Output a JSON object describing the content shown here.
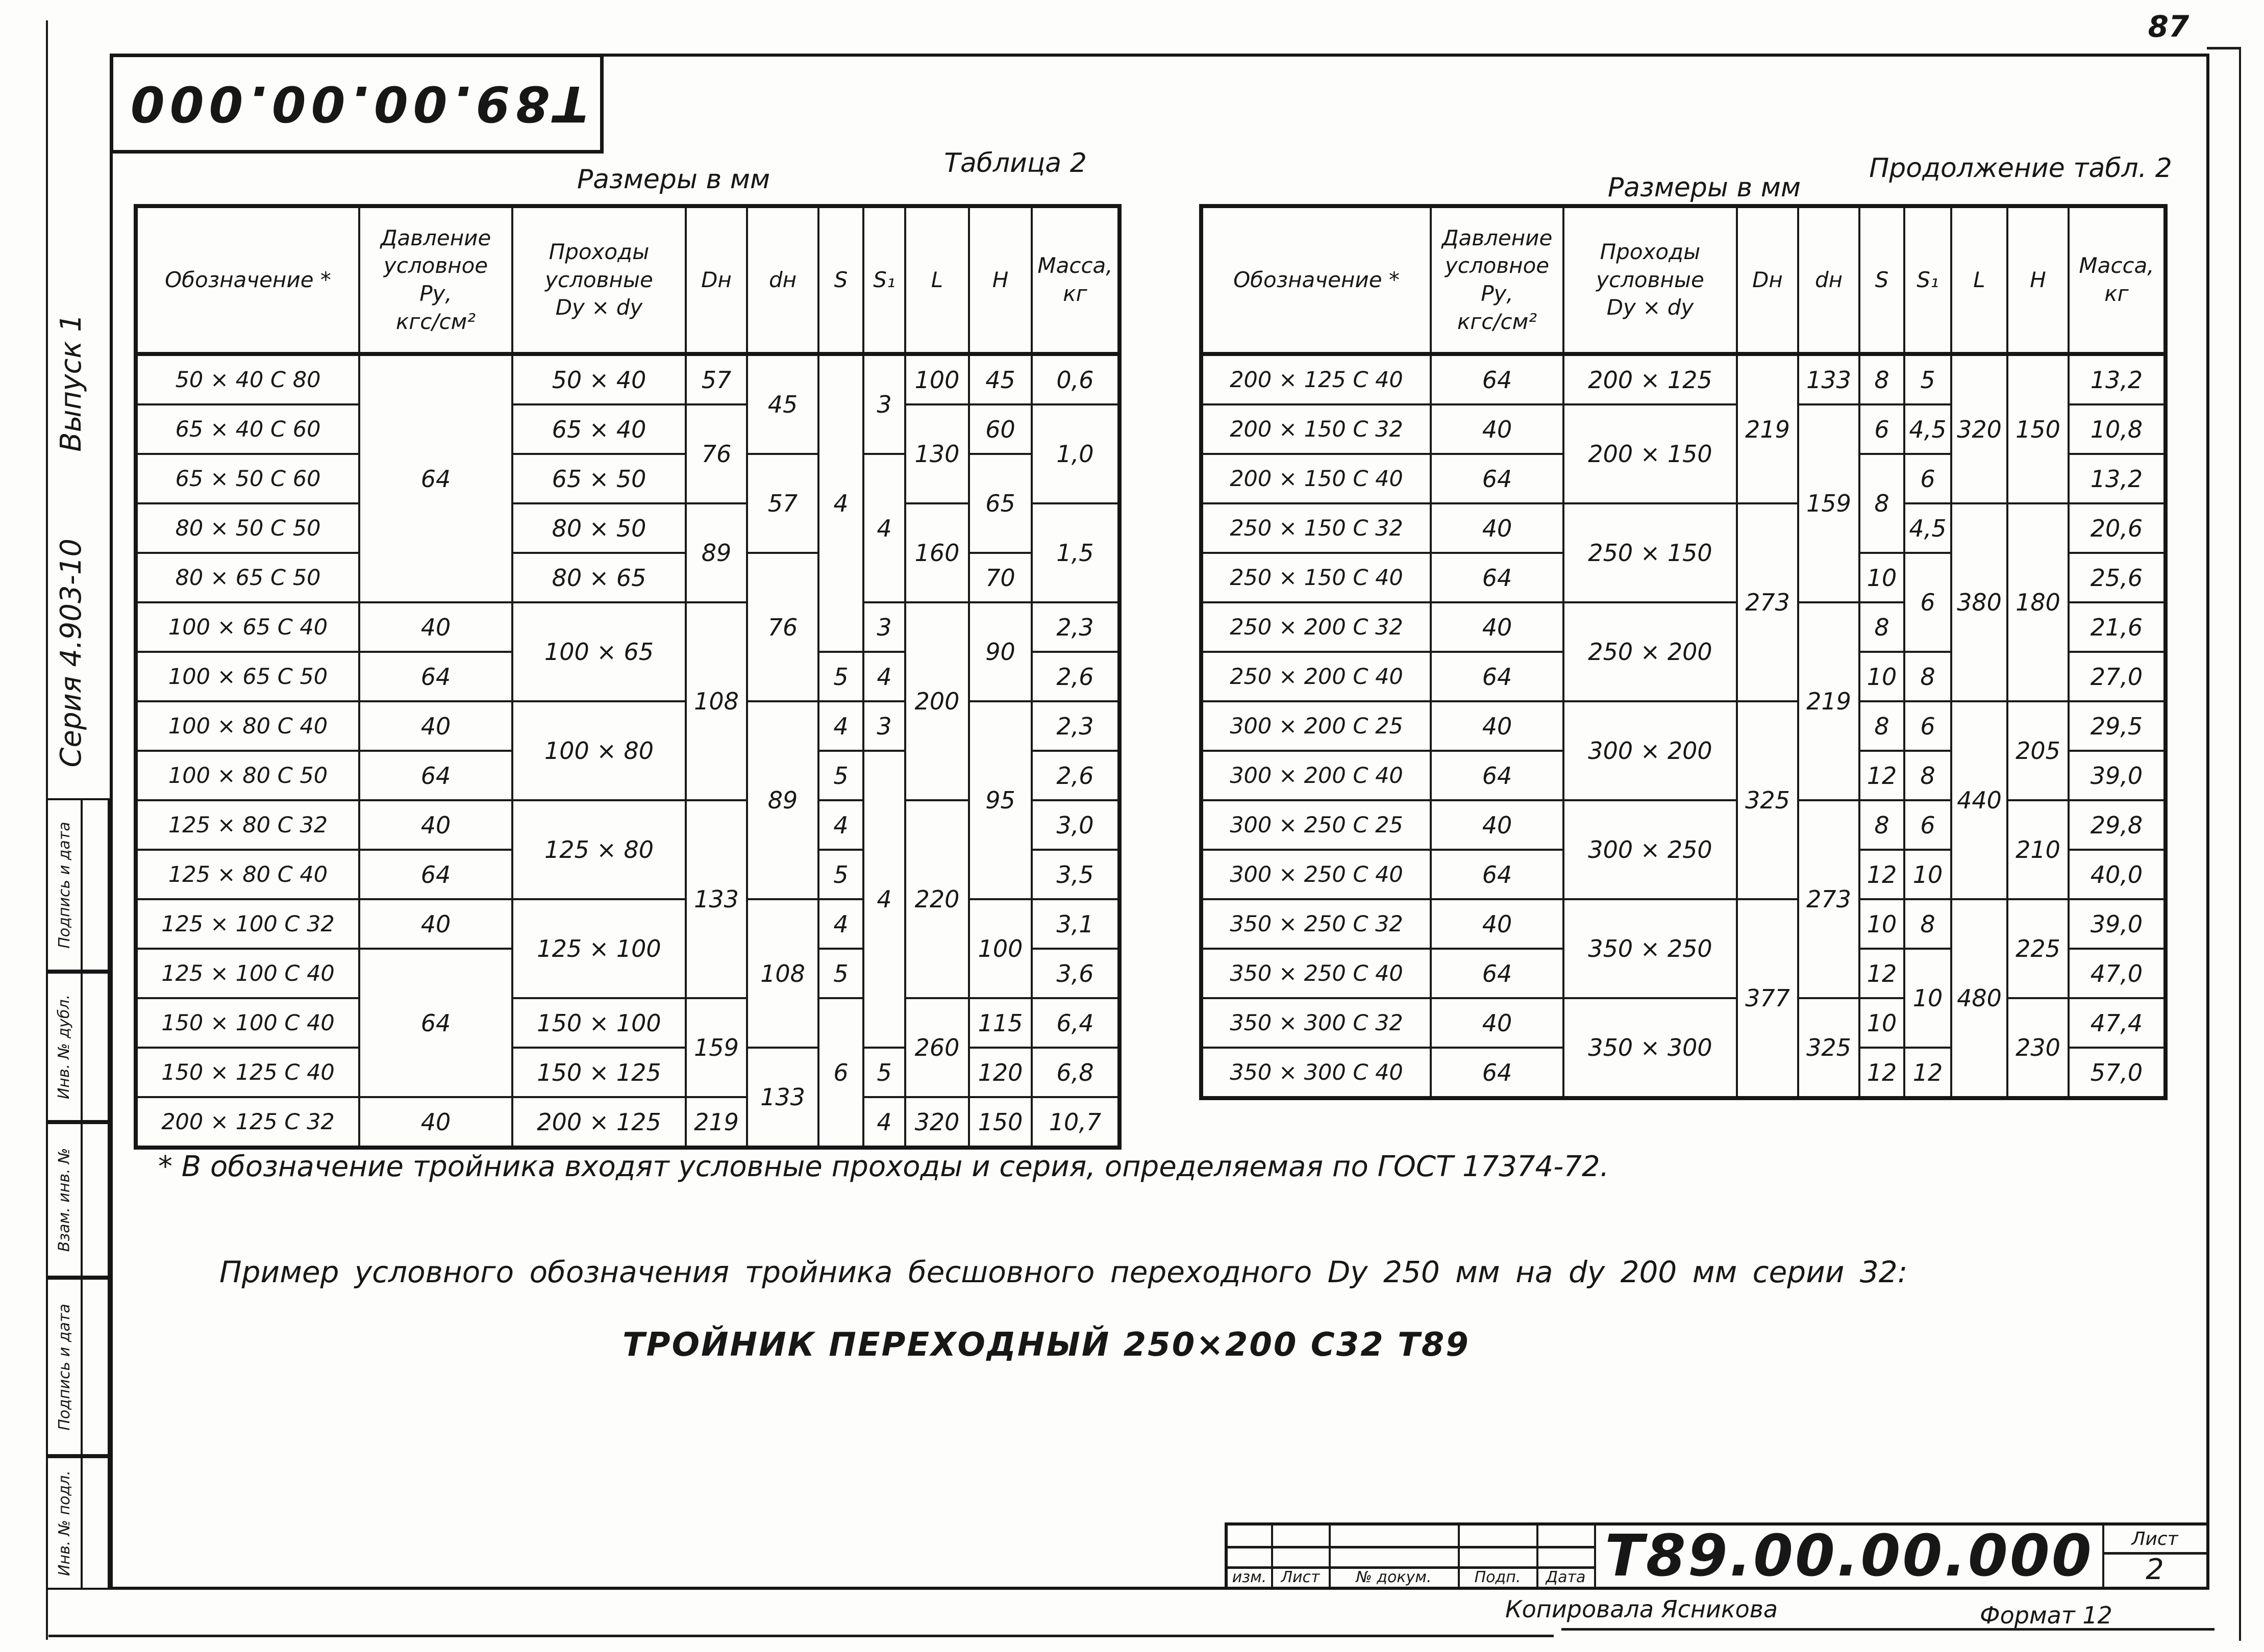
{
  "page": {
    "page_number": "87",
    "corner_stamp": "Т89.00.00.000"
  },
  "sidebar": {
    "series": "Серия 4.903-10",
    "issue": "Выпуск 1",
    "stamps": [
      {
        "label": "Подпись и дата"
      },
      {
        "label": "Инв. № дубл."
      },
      {
        "label": "Взам. инв. №"
      },
      {
        "label": "Подпись и дата"
      },
      {
        "label": "Инв. № подл."
      }
    ]
  },
  "left_table": {
    "size_caption": "Размеры в мм",
    "table_caption": "Таблица 2",
    "headers": [
      "Обозначение *",
      "Давление\nусловное\nРу,\nкгс/см²",
      "Проходы\nусловные\nDу × dу",
      "Dн",
      "dн",
      "S",
      "S₁",
      "L",
      "H",
      "Масса,\nкг"
    ],
    "rows": [
      [
        {
          "t": "50 × 40 С 80"
        },
        {
          "t": "64",
          "rs": 5
        },
        {
          "t": "50 × 40"
        },
        {
          "t": "57"
        },
        {
          "t": "45",
          "rs": 2
        },
        {
          "t": "4",
          "rs": 6
        },
        {
          "t": "3",
          "rs": 2
        },
        {
          "t": "100"
        },
        {
          "t": "45"
        },
        {
          "t": "0,6"
        }
      ],
      [
        {
          "t": "65 × 40 С 60"
        },
        null,
        {
          "t": "65 × 40"
        },
        {
          "t": "76",
          "rs": 2
        },
        null,
        null,
        null,
        {
          "t": "130",
          "rs": 2
        },
        {
          "t": "60"
        },
        {
          "t": "1,0",
          "rs": 2
        }
      ],
      [
        {
          "t": "65 × 50 С 60"
        },
        null,
        {
          "t": "65 × 50"
        },
        null,
        {
          "t": "57",
          "rs": 2
        },
        null,
        {
          "t": "4",
          "rs": 3
        },
        null,
        {
          "t": "65",
          "rs": 2
        },
        null
      ],
      [
        {
          "t": "80 × 50 С 50"
        },
        null,
        {
          "t": "80 × 50"
        },
        {
          "t": "89",
          "rs": 2
        },
        null,
        null,
        null,
        {
          "t": "160",
          "rs": 2
        },
        null,
        {
          "t": "1,5",
          "rs": 2
        }
      ],
      [
        {
          "t": "80 × 65 С 50"
        },
        null,
        {
          "t": "80 × 65"
        },
        null,
        {
          "t": "76",
          "rs": 3
        },
        null,
        null,
        null,
        {
          "t": "70"
        },
        null
      ],
      [
        {
          "t": "100 × 65 С 40"
        },
        {
          "t": "40"
        },
        {
          "t": "100 × 65",
          "rs": 2
        },
        {
          "t": "108",
          "rs": 4
        },
        null,
        null,
        {
          "t": "3"
        },
        {
          "t": "200",
          "rs": 4
        },
        {
          "t": "90",
          "rs": 2
        },
        {
          "t": "2,3"
        }
      ],
      [
        {
          "t": "100 × 65 С 50"
        },
        {
          "t": "64"
        },
        null,
        null,
        null,
        {
          "t": "5"
        },
        {
          "t": "4"
        },
        null,
        null,
        {
          "t": "2,6"
        }
      ],
      [
        {
          "t": "100 × 80 С 40"
        },
        {
          "t": "40"
        },
        {
          "t": "100 × 80",
          "rs": 2
        },
        null,
        {
          "t": "89",
          "rs": 4
        },
        {
          "t": "4"
        },
        {
          "t": "3"
        },
        null,
        {
          "t": "95",
          "rs": 4
        },
        {
          "t": "2,3"
        }
      ],
      [
        {
          "t": "100 × 80 С 50"
        },
        {
          "t": "64"
        },
        null,
        null,
        null,
        {
          "t": "5"
        },
        {
          "t": "4",
          "rs": 6
        },
        null,
        null,
        {
          "t": "2,6"
        }
      ],
      [
        {
          "t": "125 × 80 С 32"
        },
        {
          "t": "40"
        },
        {
          "t": "125 × 80",
          "rs": 2
        },
        {
          "t": "133",
          "rs": 4
        },
        null,
        {
          "t": "4"
        },
        null,
        {
          "t": "220",
          "rs": 4
        },
        null,
        {
          "t": "3,0"
        }
      ],
      [
        {
          "t": "125 × 80 С 40"
        },
        {
          "t": "64"
        },
        null,
        null,
        null,
        {
          "t": "5"
        },
        null,
        null,
        null,
        {
          "t": "3,5"
        }
      ],
      [
        {
          "t": "125 × 100 С 32"
        },
        {
          "t": "40"
        },
        {
          "t": "125 × 100",
          "rs": 2
        },
        null,
        {
          "t": "108",
          "rs": 3
        },
        {
          "t": "4"
        },
        null,
        null,
        {
          "t": "100",
          "rs": 2
        },
        {
          "t": "3,1"
        }
      ],
      [
        {
          "t": "125 × 100 С 40"
        },
        {
          "t": "64",
          "rs": 3
        },
        null,
        null,
        null,
        {
          "t": "5"
        },
        null,
        null,
        null,
        {
          "t": "3,6"
        }
      ],
      [
        {
          "t": "150 × 100 С 40"
        },
        null,
        {
          "t": "150 × 100"
        },
        {
          "t": "159",
          "rs": 2
        },
        null,
        {
          "t": "6",
          "rs": 3
        },
        null,
        {
          "t": "260",
          "rs": 2
        },
        {
          "t": "115"
        },
        {
          "t": "6,4"
        }
      ],
      [
        {
          "t": "150 × 125 С 40"
        },
        null,
        {
          "t": "150 × 125"
        },
        null,
        {
          "t": "133",
          "rs": 2
        },
        null,
        {
          "t": "5"
        },
        null,
        {
          "t": "120"
        },
        {
          "t": "6,8"
        }
      ],
      [
        {
          "t": "200 × 125 С 32"
        },
        {
          "t": "40"
        },
        {
          "t": "200 × 125"
        },
        {
          "t": "219"
        },
        null,
        null,
        {
          "t": "4"
        },
        {
          "t": "320"
        },
        {
          "t": "150"
        },
        {
          "t": "10,7"
        }
      ]
    ]
  },
  "right_table": {
    "size_caption": "Размеры в мм",
    "table_caption": "Продолжение табл. 2",
    "headers": [
      "Обозначение *",
      "Давление\nусловное\nРу,\nкгс/см²",
      "Проходы\nусловные\nDу × dу",
      "Dн",
      "dн",
      "S",
      "S₁",
      "L",
      "H",
      "Масса,\nкг"
    ],
    "rows": [
      [
        {
          "t": "200 × 125 С 40"
        },
        {
          "t": "64"
        },
        {
          "t": "200 × 125"
        },
        {
          "t": "219",
          "rs": 3
        },
        {
          "t": "133"
        },
        {
          "t": "8"
        },
        {
          "t": "5"
        },
        {
          "t": "320",
          "rs": 3
        },
        {
          "t": "150",
          "rs": 3
        },
        {
          "t": "13,2"
        }
      ],
      [
        {
          "t": "200 × 150 С 32"
        },
        {
          "t": "40"
        },
        {
          "t": "200 × 150",
          "rs": 2
        },
        null,
        {
          "t": "159",
          "rs": 4
        },
        {
          "t": "6"
        },
        {
          "t": "4,5"
        },
        null,
        null,
        {
          "t": "10,8"
        }
      ],
      [
        {
          "t": "200 × 150 С 40"
        },
        {
          "t": "64"
        },
        null,
        null,
        null,
        {
          "t": "8",
          "rs": 2
        },
        {
          "t": "6"
        },
        null,
        null,
        {
          "t": "13,2"
        }
      ],
      [
        {
          "t": "250 × 150 С 32"
        },
        {
          "t": "40"
        },
        {
          "t": "250 × 150",
          "rs": 2
        },
        {
          "t": "273",
          "rs": 4
        },
        null,
        null,
        {
          "t": "4,5"
        },
        {
          "t": "380",
          "rs": 4
        },
        {
          "t": "180",
          "rs": 4
        },
        {
          "t": "20,6"
        }
      ],
      [
        {
          "t": "250 × 150 С 40"
        },
        {
          "t": "64"
        },
        null,
        null,
        null,
        {
          "t": "10"
        },
        {
          "t": "6",
          "rs": 2
        },
        null,
        null,
        {
          "t": "25,6"
        }
      ],
      [
        {
          "t": "250 × 200 С 32"
        },
        {
          "t": "40"
        },
        {
          "t": "250 × 200",
          "rs": 2
        },
        null,
        {
          "t": "219",
          "rs": 4
        },
        {
          "t": "8"
        },
        null,
        null,
        null,
        {
          "t": "21,6"
        }
      ],
      [
        {
          "t": "250 × 200 С 40"
        },
        {
          "t": "64"
        },
        null,
        null,
        null,
        {
          "t": "10"
        },
        {
          "t": "8"
        },
        null,
        null,
        {
          "t": "27,0"
        }
      ],
      [
        {
          "t": "300 × 200 С 25"
        },
        {
          "t": "40"
        },
        {
          "t": "300 × 200",
          "rs": 2
        },
        {
          "t": "325",
          "rs": 4
        },
        null,
        {
          "t": "8"
        },
        {
          "t": "6"
        },
        {
          "t": "440",
          "rs": 4
        },
        {
          "t": "205",
          "rs": 2
        },
        {
          "t": "29,5"
        }
      ],
      [
        {
          "t": "300 × 200 С 40"
        },
        {
          "t": "64"
        },
        null,
        null,
        null,
        {
          "t": "12"
        },
        {
          "t": "8"
        },
        null,
        null,
        {
          "t": "39,0"
        }
      ],
      [
        {
          "t": "300 × 250 С 25"
        },
        {
          "t": "40"
        },
        {
          "t": "300 × 250",
          "rs": 2
        },
        null,
        {
          "t": "273",
          "rs": 4
        },
        {
          "t": "8"
        },
        {
          "t": "6"
        },
        null,
        {
          "t": "210",
          "rs": 2
        },
        {
          "t": "29,8"
        }
      ],
      [
        {
          "t": "300 × 250 С 40"
        },
        {
          "t": "64"
        },
        null,
        null,
        null,
        {
          "t": "12"
        },
        {
          "t": "10"
        },
        null,
        null,
        {
          "t": "40,0"
        }
      ],
      [
        {
          "t": "350 × 250 С 32"
        },
        {
          "t": "40"
        },
        {
          "t": "350 × 250",
          "rs": 2
        },
        {
          "t": "377",
          "rs": 4
        },
        null,
        {
          "t": "10"
        },
        {
          "t": "8"
        },
        {
          "t": "480",
          "rs": 4
        },
        {
          "t": "225",
          "rs": 2
        },
        {
          "t": "39,0"
        }
      ],
      [
        {
          "t": "350 × 250 С 40"
        },
        {
          "t": "64"
        },
        null,
        null,
        null,
        {
          "t": "12"
        },
        {
          "t": "10",
          "rs": 2
        },
        null,
        null,
        {
          "t": "47,0"
        }
      ],
      [
        {
          "t": "350 × 300 С 32"
        },
        {
          "t": "40"
        },
        {
          "t": "350 × 300",
          "rs": 2
        },
        null,
        {
          "t": "325",
          "rs": 2
        },
        {
          "t": "10"
        },
        null,
        null,
        {
          "t": "230",
          "rs": 2
        },
        {
          "t": "47,4"
        }
      ],
      [
        {
          "t": "350 × 300 С 40"
        },
        {
          "t": "64"
        },
        null,
        null,
        null,
        {
          "t": "12"
        },
        {
          "t": "12"
        },
        null,
        null,
        {
          "t": "57,0"
        }
      ]
    ]
  },
  "notes": {
    "footnote": "* В обозначение тройника входят условные проходы и серия, определяемая по ГОСТ 17374-72.",
    "example_line1": "Пример условного обозначения тройника бесшовного переходного Dу 250 мм на dу 200 мм серии 32:",
    "example_line2": "ТРОЙНИК  ПЕРЕХОДНЫЙ  250×200  С32  Т89"
  },
  "title_block": {
    "revision_labels": [
      "изм.",
      "Лист",
      "№ докум.",
      "Подп.",
      "Дата"
    ],
    "doc_number": "Т89.00.00.000",
    "sheet_label": "Лист",
    "sheet_number": "2",
    "copied_by": "Копировала Ясникова",
    "format_label": "Формат 12"
  }
}
